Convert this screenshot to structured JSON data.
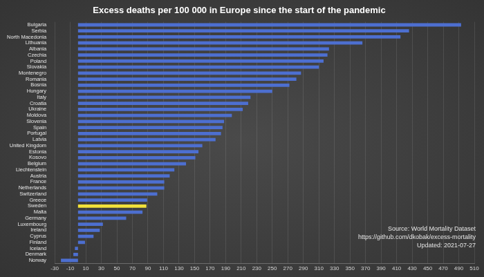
{
  "chart_data": {
    "type": "bar",
    "orientation": "horizontal",
    "title": "Excess deaths per 100 000 in Europe since the start of the pandemic",
    "categories": [
      "Bulgaria",
      "Serbia",
      "North Macedonia",
      "Lithuania",
      "Albania",
      "Czechia",
      "Poland",
      "Slovakia",
      "Montenegro",
      "Romania",
      "Bosnia",
      "Hungary",
      "Italy",
      "Croatia",
      "Ukraine",
      "Moldova",
      "Slovenia",
      "Spain",
      "Portugal",
      "Latvia",
      "United Kingdom",
      "Estonia",
      "Kosovo",
      "Belgium",
      "Liechtenstein",
      "Austria",
      "France",
      "Netherlands",
      "Switzerland",
      "Greece",
      "Sweden",
      "Malta",
      "Germany",
      "Luxembourg",
      "Ireland",
      "Cyprus",
      "Finland",
      "Iceland",
      "Denmark",
      "Norway"
    ],
    "values": [
      493,
      426,
      415,
      366,
      323,
      321,
      316,
      310,
      287,
      281,
      272,
      250,
      222,
      219,
      212,
      198,
      188,
      186,
      184,
      177,
      160,
      155,
      151,
      139,
      124,
      118,
      111,
      111,
      102,
      89,
      88,
      83,
      62,
      32,
      28,
      20,
      9,
      -4,
      -6,
      -22
    ],
    "colors": [
      "#4d6fd0",
      "#4d6fd0",
      "#4d6fd0",
      "#4d6fd0",
      "#4d6fd0",
      "#4d6fd0",
      "#4d6fd0",
      "#4d6fd0",
      "#4d6fd0",
      "#4d6fd0",
      "#4d6fd0",
      "#4d6fd0",
      "#4d6fd0",
      "#4d6fd0",
      "#4d6fd0",
      "#4d6fd0",
      "#4d6fd0",
      "#4d6fd0",
      "#4d6fd0",
      "#4d6fd0",
      "#4d6fd0",
      "#4d6fd0",
      "#4d6fd0",
      "#4d6fd0",
      "#4d6fd0",
      "#4d6fd0",
      "#4d6fd0",
      "#4d6fd0",
      "#4d6fd0",
      "#4d6fd0",
      "#f2e13a",
      "#4d6fd0",
      "#4d6fd0",
      "#4d6fd0",
      "#4d6fd0",
      "#4d6fd0",
      "#4d6fd0",
      "#4d6fd0",
      "#4d6fd0",
      "#4d6fd0"
    ],
    "xlim": [
      -30,
      510
    ],
    "xticks": [
      -30,
      -10,
      10,
      30,
      50,
      70,
      90,
      110,
      130,
      150,
      170,
      190,
      210,
      230,
      250,
      270,
      290,
      310,
      330,
      350,
      370,
      390,
      410,
      430,
      450,
      470,
      490,
      510
    ],
    "grid": true,
    "annotations": [
      "Source: World Mortality Dataset",
      "https://github.com/dkobak/excess-mortality",
      "Updated: 2021-07-27"
    ]
  }
}
